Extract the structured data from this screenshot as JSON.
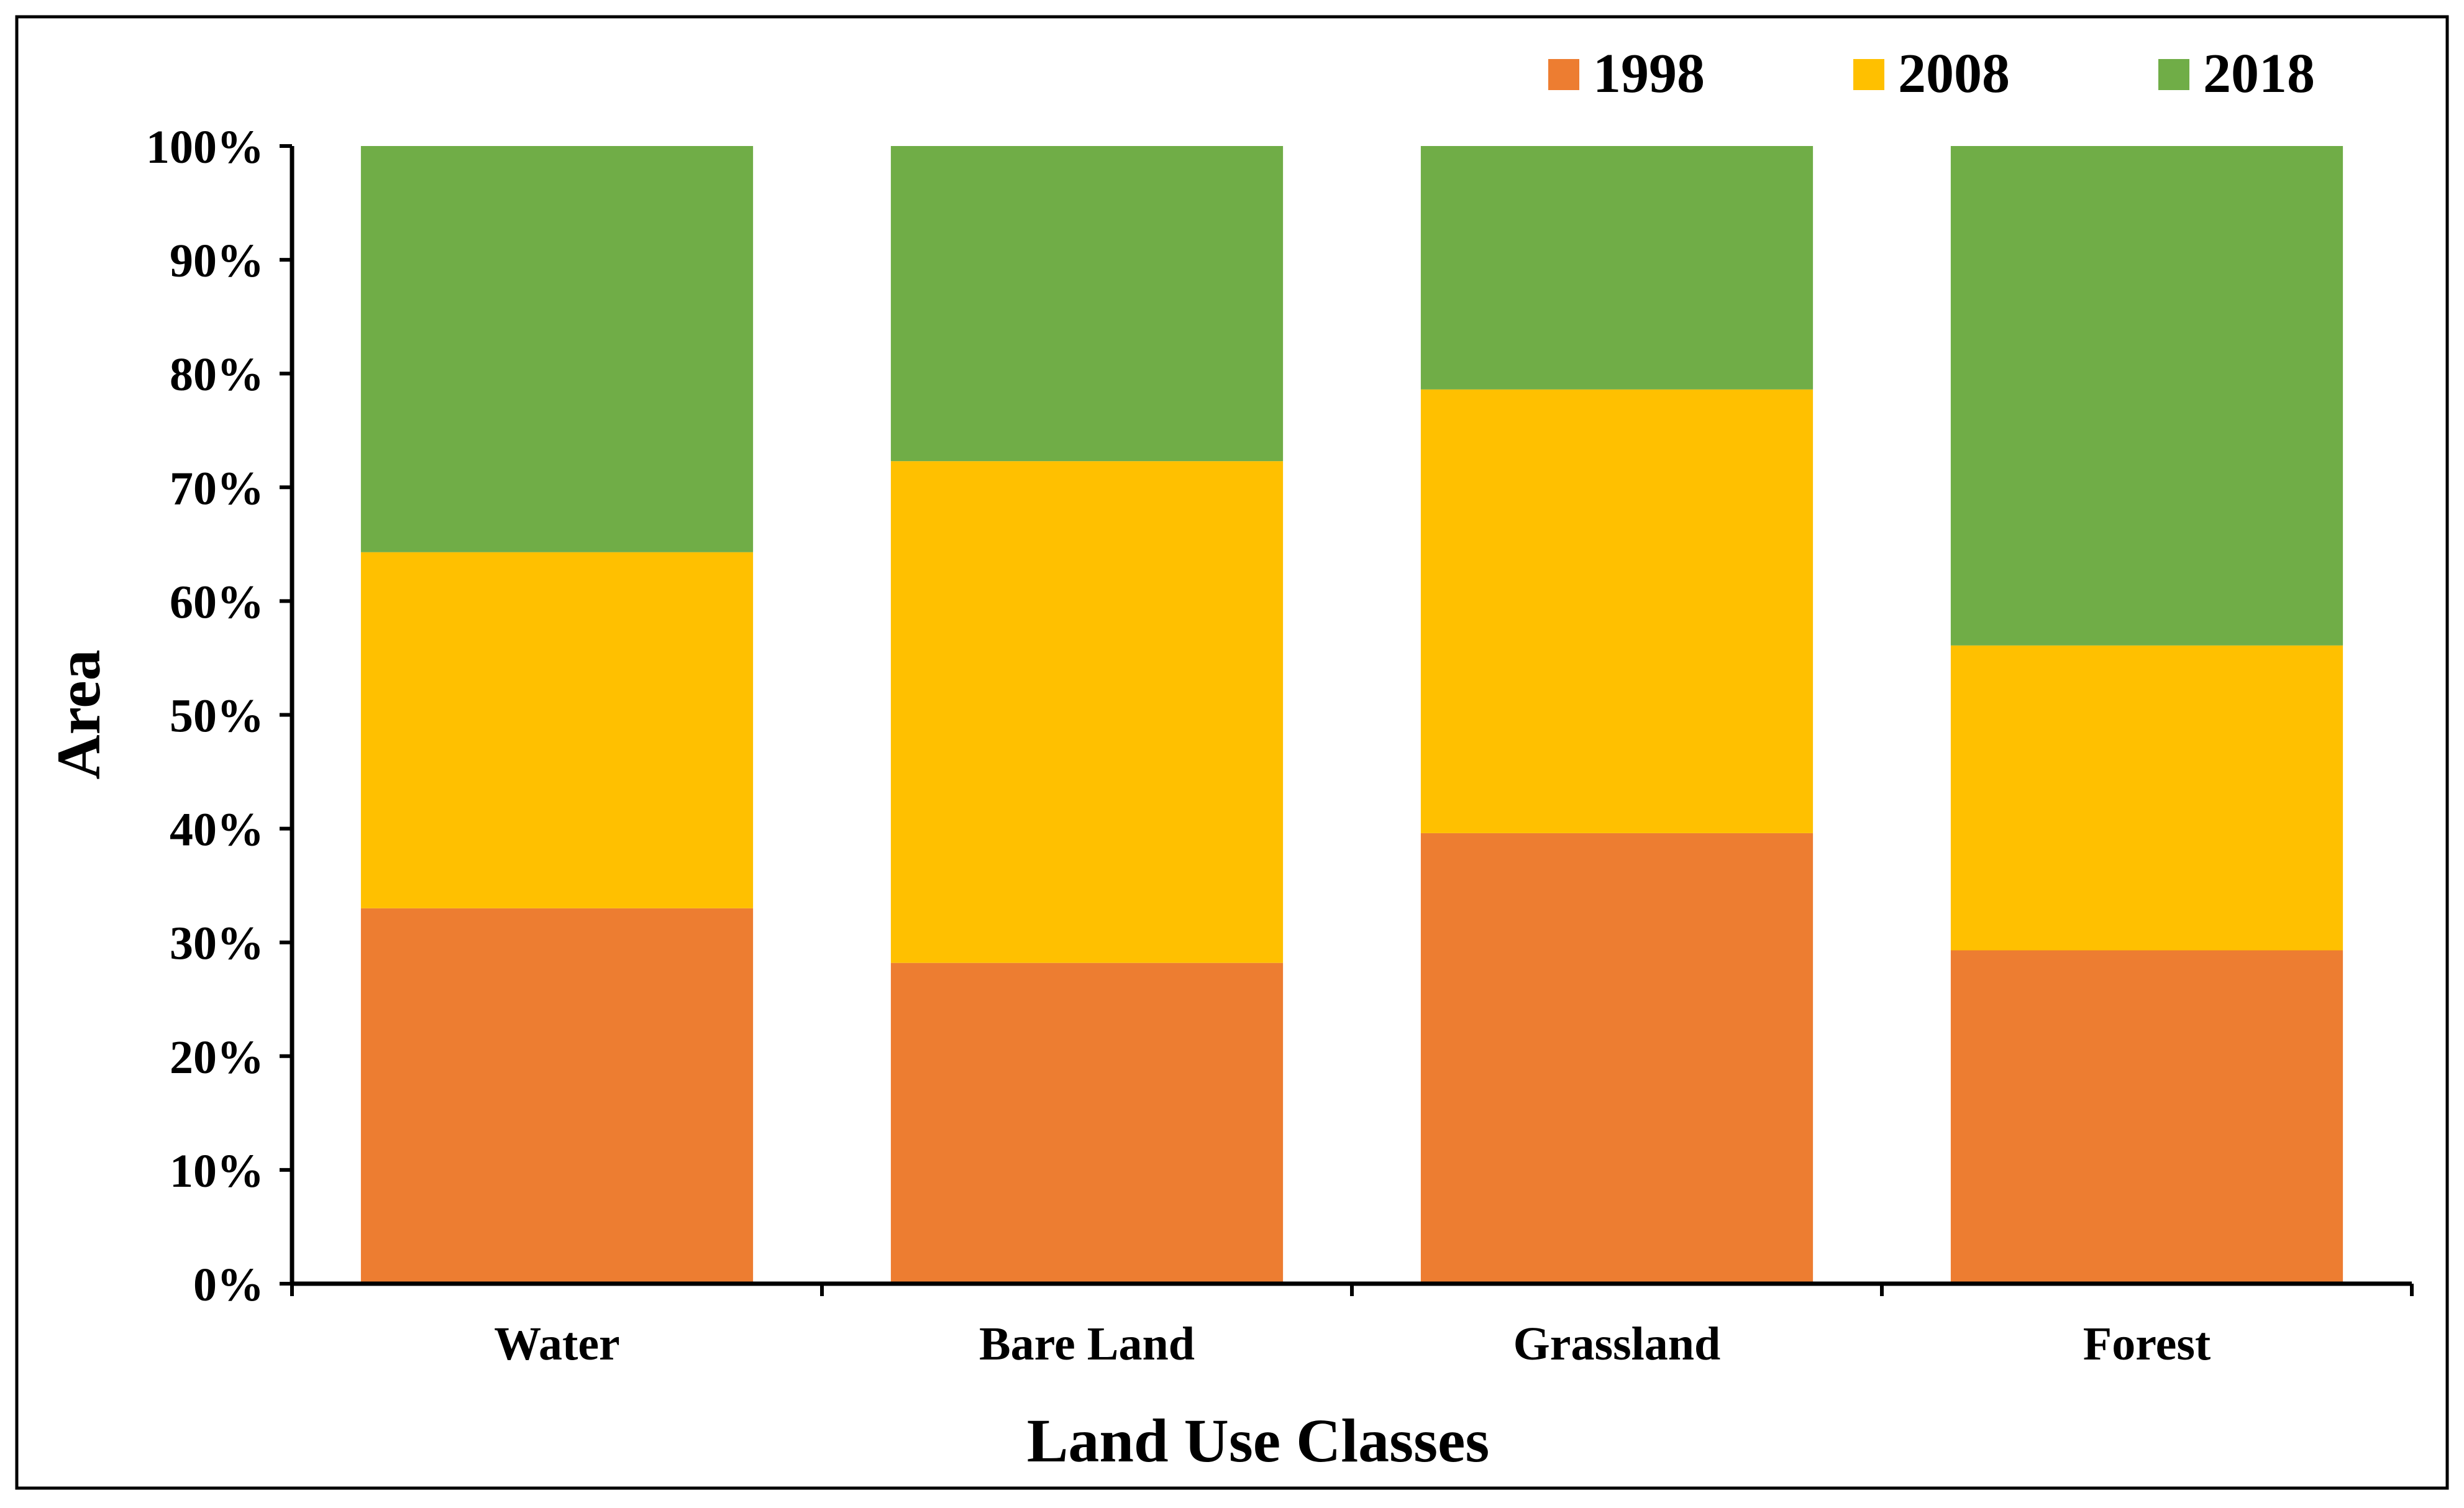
{
  "chart_data": {
    "type": "bar",
    "stacked": true,
    "percent_stacked": true,
    "title": "",
    "xlabel": "Land Use Classes",
    "ylabel": "Area",
    "ylim": [
      0,
      100
    ],
    "yticks": [
      0,
      10,
      20,
      30,
      40,
      50,
      60,
      70,
      80,
      90,
      100
    ],
    "ytick_labels": [
      "0%",
      "10%",
      "20%",
      "30%",
      "40%",
      "50%",
      "60%",
      "70%",
      "80%",
      "90%",
      "100%"
    ],
    "categories": [
      "Water",
      "Bare Land",
      "Grassland",
      "Forest"
    ],
    "series": [
      {
        "name": "1998",
        "color": "#ED7D31",
        "values": [
          33.0,
          28.2,
          39.6,
          29.3
        ]
      },
      {
        "name": "2008",
        "color": "#FFC000",
        "values": [
          31.3,
          44.1,
          39.0,
          26.8
        ]
      },
      {
        "name": "2018",
        "color": "#70AD47",
        "values": [
          35.7,
          27.7,
          21.4,
          43.9
        ]
      }
    ],
    "legend": {
      "position": "top-right",
      "entries": [
        "1998",
        "2008",
        "2018"
      ]
    },
    "grid": false
  }
}
